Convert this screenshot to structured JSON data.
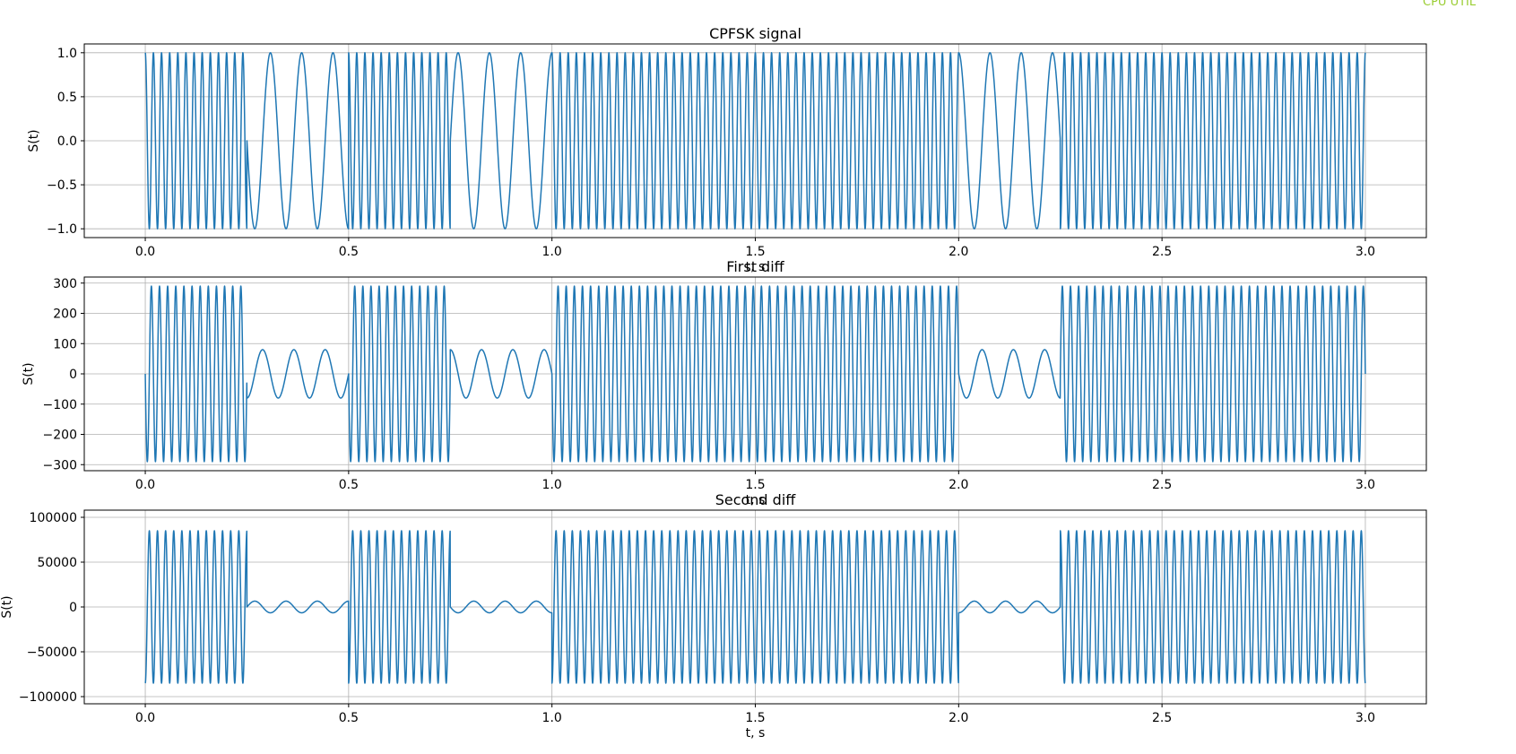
{
  "overlay": {
    "label": "CPU UTIL",
    "color": "#9acd32"
  },
  "chart_data": [
    {
      "type": "line",
      "title": "CPFSK signal",
      "xlabel": "t, s",
      "ylabel": "S(t)",
      "xlim": [
        -0.15,
        3.15
      ],
      "ylim": [
        -1.1,
        1.1
      ],
      "xticks": [
        "0.0",
        "0.5",
        "1.0",
        "1.5",
        "2.0",
        "2.5",
        "3.0"
      ],
      "yticks": [
        "1.0",
        "0.5",
        "0.0",
        "−0.5",
        "−1.0"
      ],
      "grid": true,
      "series": [
        {
          "color": "#1f77b4",
          "kind": "signal",
          "bits": [
            1,
            0,
            1,
            0,
            1,
            1,
            1,
            1,
            0,
            1,
            1,
            1
          ],
          "bit_duration": 0.25,
          "freq_bit1": 50,
          "freq_bit0": 13,
          "amplitude": 1
        }
      ]
    },
    {
      "type": "line",
      "title": "First diff",
      "xlabel": "t, s",
      "ylabel": "S(t)",
      "xlim": [
        -0.15,
        3.15
      ],
      "ylim": [
        -320,
        320
      ],
      "xticks": [
        "0.0",
        "0.5",
        "1.0",
        "1.5",
        "2.0",
        "2.5",
        "3.0"
      ],
      "yticks": [
        "300",
        "200",
        "100",
        "0",
        "−100",
        "−200",
        "−300"
      ],
      "grid": true,
      "series": [
        {
          "color": "#1f77b4",
          "kind": "first_derivative",
          "bits": [
            1,
            0,
            1,
            0,
            1,
            1,
            1,
            1,
            0,
            1,
            1,
            1
          ],
          "bit_duration": 0.25,
          "freq_bit1": 50,
          "freq_bit0": 13,
          "amplitude_bit1": 290,
          "amplitude_bit0": 80
        }
      ]
    },
    {
      "type": "line",
      "title": "Second diff",
      "xlabel": "t, s",
      "ylabel": "S(t)",
      "xlim": [
        -0.15,
        3.15
      ],
      "ylim": [
        -108000,
        108000
      ],
      "xticks": [
        "0.0",
        "0.5",
        "1.0",
        "1.5",
        "2.0",
        "2.5",
        "3.0"
      ],
      "yticks": [
        "100000",
        "50000",
        "0",
        "−50000",
        "−100000"
      ],
      "grid": true,
      "series": [
        {
          "color": "#1f77b4",
          "kind": "second_derivative",
          "bits": [
            1,
            0,
            1,
            0,
            1,
            1,
            1,
            1,
            0,
            1,
            1,
            1
          ],
          "bit_duration": 0.25,
          "freq_bit1": 50,
          "freq_bit0": 13,
          "amplitude_bit1": 85000,
          "amplitude_bit0": 6500
        }
      ]
    }
  ]
}
